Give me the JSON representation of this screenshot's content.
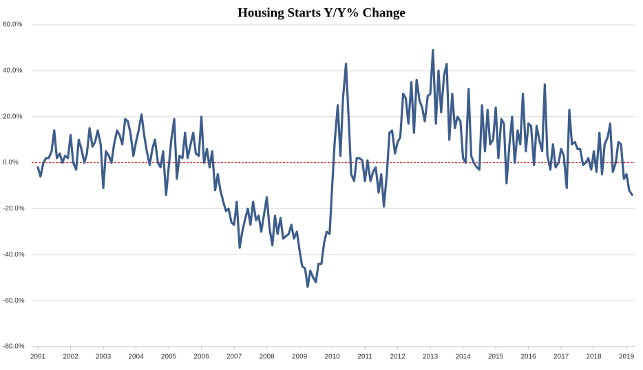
{
  "chart_data": {
    "type": "line",
    "title": "Housing Starts Y/Y% Change",
    "x": [
      2001,
      2001.08,
      2001.17,
      2001.25,
      2001.33,
      2001.42,
      2001.5,
      2001.58,
      2001.67,
      2001.75,
      2001.83,
      2001.92,
      2002,
      2002.08,
      2002.17,
      2002.25,
      2002.33,
      2002.42,
      2002.5,
      2002.58,
      2002.67,
      2002.75,
      2002.83,
      2002.92,
      2003,
      2003.08,
      2003.17,
      2003.25,
      2003.33,
      2003.42,
      2003.5,
      2003.58,
      2003.67,
      2003.75,
      2003.83,
      2003.92,
      2004,
      2004.08,
      2004.17,
      2004.25,
      2004.33,
      2004.42,
      2004.5,
      2004.58,
      2004.67,
      2004.75,
      2004.83,
      2004.92,
      2005,
      2005.08,
      2005.17,
      2005.25,
      2005.33,
      2005.42,
      2005.5,
      2005.58,
      2005.67,
      2005.75,
      2005.83,
      2005.92,
      2006,
      2006.08,
      2006.17,
      2006.25,
      2006.33,
      2006.42,
      2006.5,
      2006.58,
      2006.67,
      2006.75,
      2006.83,
      2006.92,
      2007,
      2007.08,
      2007.17,
      2007.25,
      2007.33,
      2007.42,
      2007.5,
      2007.58,
      2007.67,
      2007.75,
      2007.83,
      2007.92,
      2008,
      2008.08,
      2008.17,
      2008.25,
      2008.33,
      2008.42,
      2008.5,
      2008.58,
      2008.67,
      2008.75,
      2008.83,
      2008.92,
      2009,
      2009.08,
      2009.17,
      2009.25,
      2009.33,
      2009.42,
      2009.5,
      2009.58,
      2009.67,
      2009.75,
      2009.83,
      2009.92,
      2010,
      2010.08,
      2010.17,
      2010.25,
      2010.33,
      2010.42,
      2010.5,
      2010.58,
      2010.67,
      2010.75,
      2010.83,
      2010.92,
      2011,
      2011.08,
      2011.17,
      2011.25,
      2011.33,
      2011.42,
      2011.5,
      2011.58,
      2011.67,
      2011.75,
      2011.83,
      2011.92,
      2012,
      2012.08,
      2012.17,
      2012.25,
      2012.33,
      2012.42,
      2012.5,
      2012.58,
      2012.67,
      2012.75,
      2012.83,
      2012.92,
      2013,
      2013.08,
      2013.17,
      2013.25,
      2013.33,
      2013.42,
      2013.5,
      2013.58,
      2013.67,
      2013.75,
      2013.83,
      2013.92,
      2014,
      2014.08,
      2014.17,
      2014.25,
      2014.33,
      2014.42,
      2014.5,
      2014.58,
      2014.67,
      2014.75,
      2014.83,
      2014.92,
      2015,
      2015.08,
      2015.17,
      2015.25,
      2015.33,
      2015.42,
      2015.5,
      2015.58,
      2015.67,
      2015.75,
      2015.83,
      2015.92,
      2016,
      2016.08,
      2016.17,
      2016.25,
      2016.33,
      2016.42,
      2016.5,
      2016.58,
      2016.67,
      2016.75,
      2016.83,
      2016.92,
      2017,
      2017.08,
      2017.17,
      2017.25,
      2017.33,
      2017.42,
      2017.5,
      2017.58,
      2017.67,
      2017.75,
      2017.83,
      2017.92,
      2018,
      2018.08,
      2018.17,
      2018.25,
      2018.33,
      2018.42,
      2018.5,
      2018.58,
      2018.67,
      2018.75,
      2018.83,
      2018.92,
      2019,
      2019.08,
      2019.17
    ],
    "series": [
      {
        "color": "#3d5d8c",
        "values": [
          -2,
          -6,
          0,
          2,
          2,
          5,
          14,
          2,
          4,
          0,
          3,
          2,
          12,
          0,
          -3,
          10,
          6,
          0,
          4,
          15,
          7,
          9,
          14,
          8,
          -11,
          5,
          3,
          0,
          8,
          14,
          12,
          8,
          19,
          18,
          13,
          3,
          9,
          14,
          21,
          12,
          5,
          -1,
          6,
          10,
          0,
          -2,
          5,
          -14,
          -2,
          10,
          19,
          -7,
          3,
          2,
          13,
          2,
          8,
          13,
          4,
          3,
          20,
          0,
          6,
          -2,
          5,
          -12,
          -5,
          -12,
          -17,
          -21,
          -20,
          -26,
          -27,
          -17,
          -37,
          -30,
          -25,
          -20,
          -27,
          -17,
          -25,
          -23,
          -30,
          -22,
          -15,
          -28,
          -36,
          -23,
          -31,
          -24,
          -33,
          -32,
          -31,
          -27,
          -33,
          -30,
          -38,
          -45,
          -46,
          -54,
          -47,
          -50,
          -52,
          -44,
          -44,
          -35,
          -30,
          -31,
          -10,
          10,
          25,
          3,
          28,
          43,
          20,
          -5,
          -8,
          2,
          2,
          1,
          -8,
          1,
          -8,
          -4,
          -2,
          -13,
          -5,
          -19,
          -5,
          13,
          14,
          4,
          9,
          11,
          30,
          28,
          17,
          35,
          13,
          36,
          27,
          24,
          18,
          29,
          30,
          49,
          17,
          40,
          22,
          38,
          43,
          10,
          30,
          15,
          20,
          18,
          2,
          0,
          32,
          3,
          0,
          -2,
          -3,
          25,
          5,
          23,
          8,
          10,
          24,
          2,
          19,
          17,
          -9,
          8,
          20,
          0,
          14,
          8,
          30,
          5,
          17,
          16,
          -1,
          16,
          10,
          5,
          34,
          3,
          -3,
          8,
          -2,
          0,
          6,
          3,
          -11,
          23,
          8,
          9,
          6,
          6,
          -1,
          0,
          2,
          -3,
          5,
          -4,
          13,
          -5,
          8,
          11,
          17,
          -4,
          0,
          9,
          8,
          -7,
          -5,
          -12,
          -14
        ]
      }
    ],
    "xlim": [
      2000.81,
      2019.25
    ],
    "xticks": [
      2001,
      2002,
      2003,
      2004,
      2005,
      2006,
      2007,
      2008,
      2009,
      2010,
      2011,
      2012,
      2013,
      2014,
      2015,
      2016,
      2017,
      2018,
      2019
    ],
    "ylim": [
      -80,
      60
    ],
    "yticks": [
      {
        "value": -80,
        "label": "-80.0%"
      },
      {
        "value": -60,
        "label": "-60.0%"
      },
      {
        "value": -40,
        "label": "-40.0%"
      },
      {
        "value": -20,
        "label": "-20.0%"
      },
      {
        "value": 0,
        "label": "0.0%"
      },
      {
        "value": 20,
        "label": "20.0%"
      },
      {
        "value": 40,
        "label": "40.0%"
      },
      {
        "value": 60,
        "label": "60.0%"
      }
    ],
    "grid": true,
    "zero_line_color": "#c00000"
  }
}
